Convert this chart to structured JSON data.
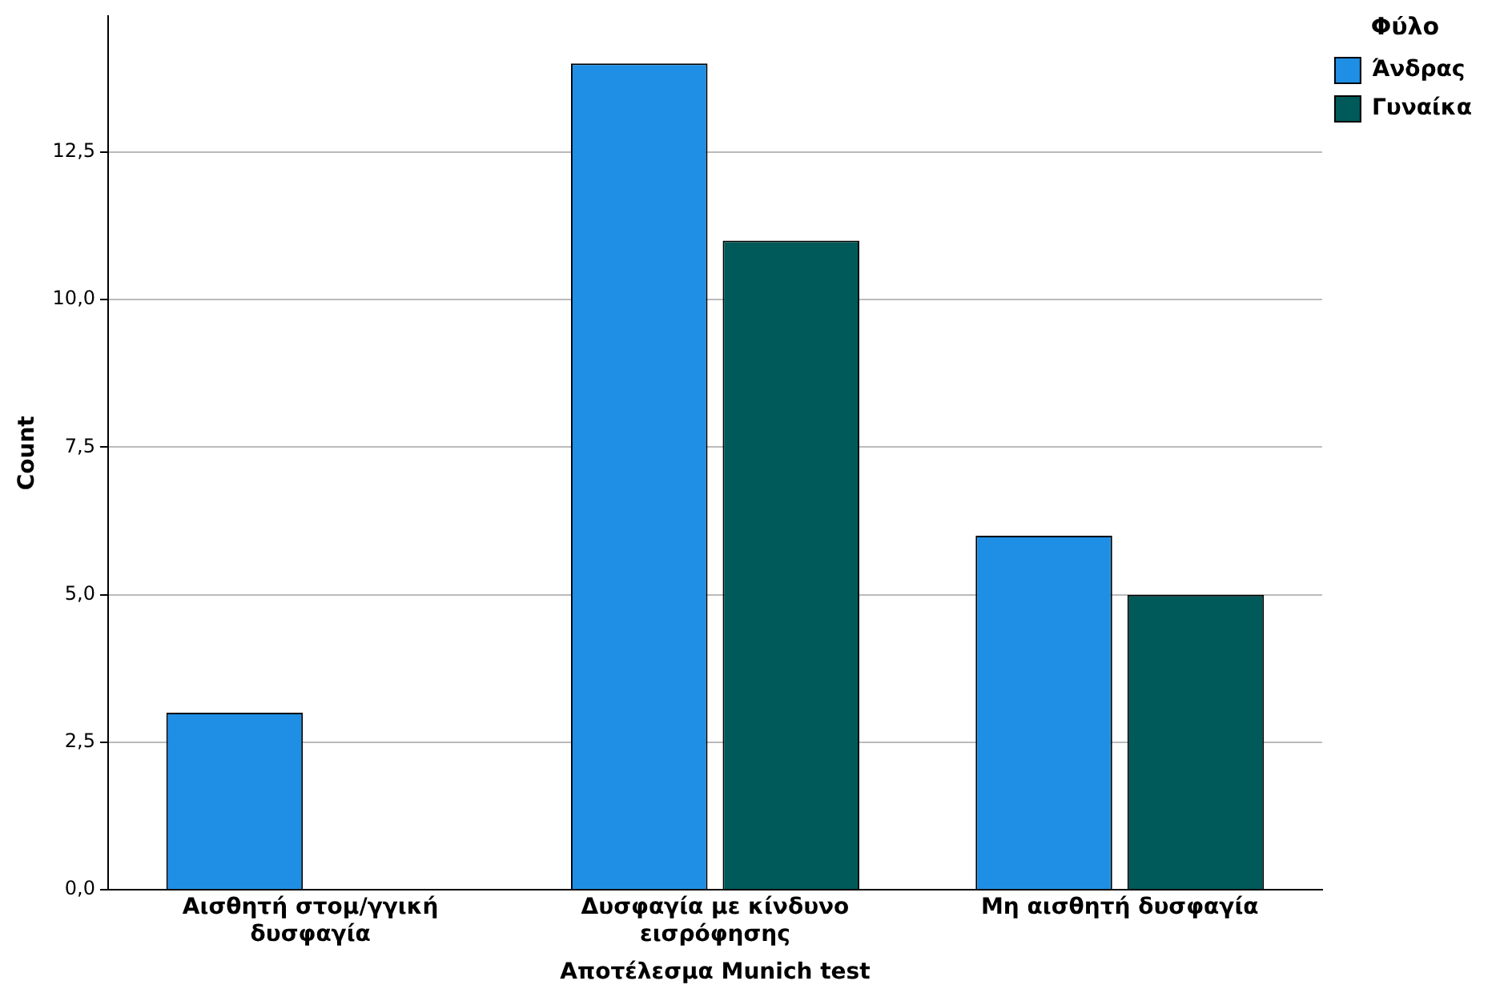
{
  "chart_data": {
    "type": "bar",
    "xlabel": "Αποτέλεσμα Munich test",
    "ylabel": "Count",
    "legend_title": "Φύλο",
    "categories": [
      "Αισθητή στομ/γγική δυσφαγία",
      "Δυσφαγία με κίνδυνο εισρόφησης",
      "Μη αισθητή δυσφαγία"
    ],
    "series": [
      {
        "name": "Άνδρας",
        "color": "#1f8fe5",
        "values": [
          3,
          14,
          6
        ]
      },
      {
        "name": "Γυναίκα",
        "color": "#005a5a",
        "values": [
          0,
          11,
          5
        ]
      }
    ],
    "ylim": [
      0,
      14.8
    ],
    "yticks": [
      {
        "value": 0,
        "label": "0,0"
      },
      {
        "value": 2.5,
        "label": "2,5"
      },
      {
        "value": 5,
        "label": "5,0"
      },
      {
        "value": 7.5,
        "label": "7,5"
      },
      {
        "value": 10,
        "label": "10,0"
      },
      {
        "value": 12.5,
        "label": "12,5"
      }
    ],
    "grid": "y",
    "legend": "top right"
  }
}
